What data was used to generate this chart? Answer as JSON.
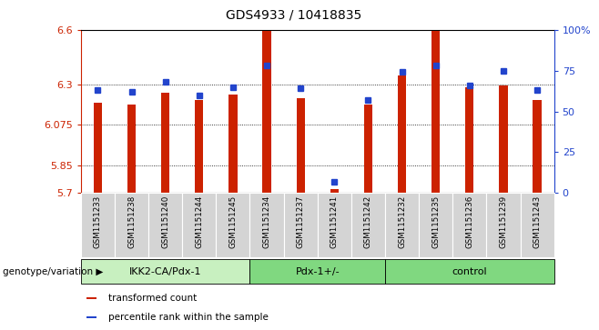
{
  "title": "GDS4933 / 10418835",
  "samples": [
    "GSM1151233",
    "GSM1151238",
    "GSM1151240",
    "GSM1151244",
    "GSM1151245",
    "GSM1151234",
    "GSM1151237",
    "GSM1151241",
    "GSM1151242",
    "GSM1151232",
    "GSM1151235",
    "GSM1151236",
    "GSM1151239",
    "GSM1151243"
  ],
  "groups": [
    {
      "label": "IKK2-CA/Pdx-1",
      "color": "#c8f0c0",
      "start": 0,
      "end": 5
    },
    {
      "label": "Pdx-1+/-",
      "color": "#80d880",
      "start": 5,
      "end": 9
    },
    {
      "label": "control",
      "color": "#80d880",
      "start": 9,
      "end": 14
    }
  ],
  "red_values": [
    6.2,
    6.19,
    6.255,
    6.215,
    6.245,
    6.595,
    6.225,
    5.722,
    6.19,
    6.35,
    6.595,
    6.285,
    6.295,
    6.215
  ],
  "blue_percentiles": [
    63,
    62,
    68,
    60,
    65,
    78,
    64,
    7,
    57,
    74,
    78,
    66,
    75,
    63
  ],
  "ymin": 5.7,
  "ymax": 6.6,
  "yticks": [
    5.7,
    5.85,
    6.075,
    6.3,
    6.6
  ],
  "ytick_labels": [
    "5.7",
    "5.85",
    "6.075",
    "6.3",
    "6.6"
  ],
  "y2min": 0,
  "y2max": 100,
  "y2ticks": [
    0,
    25,
    50,
    75,
    100
  ],
  "y2tick_labels": [
    "0",
    "25",
    "50",
    "75",
    "100%"
  ],
  "bar_bottom": 5.7,
  "red_color": "#cc2200",
  "blue_color": "#2244cc",
  "tick_bg": "#d4d4d4",
  "group_label": "genotype/variation",
  "legend_items": [
    {
      "color": "#cc2200",
      "label": "transformed count"
    },
    {
      "color": "#2244cc",
      "label": "percentile rank within the sample"
    }
  ]
}
